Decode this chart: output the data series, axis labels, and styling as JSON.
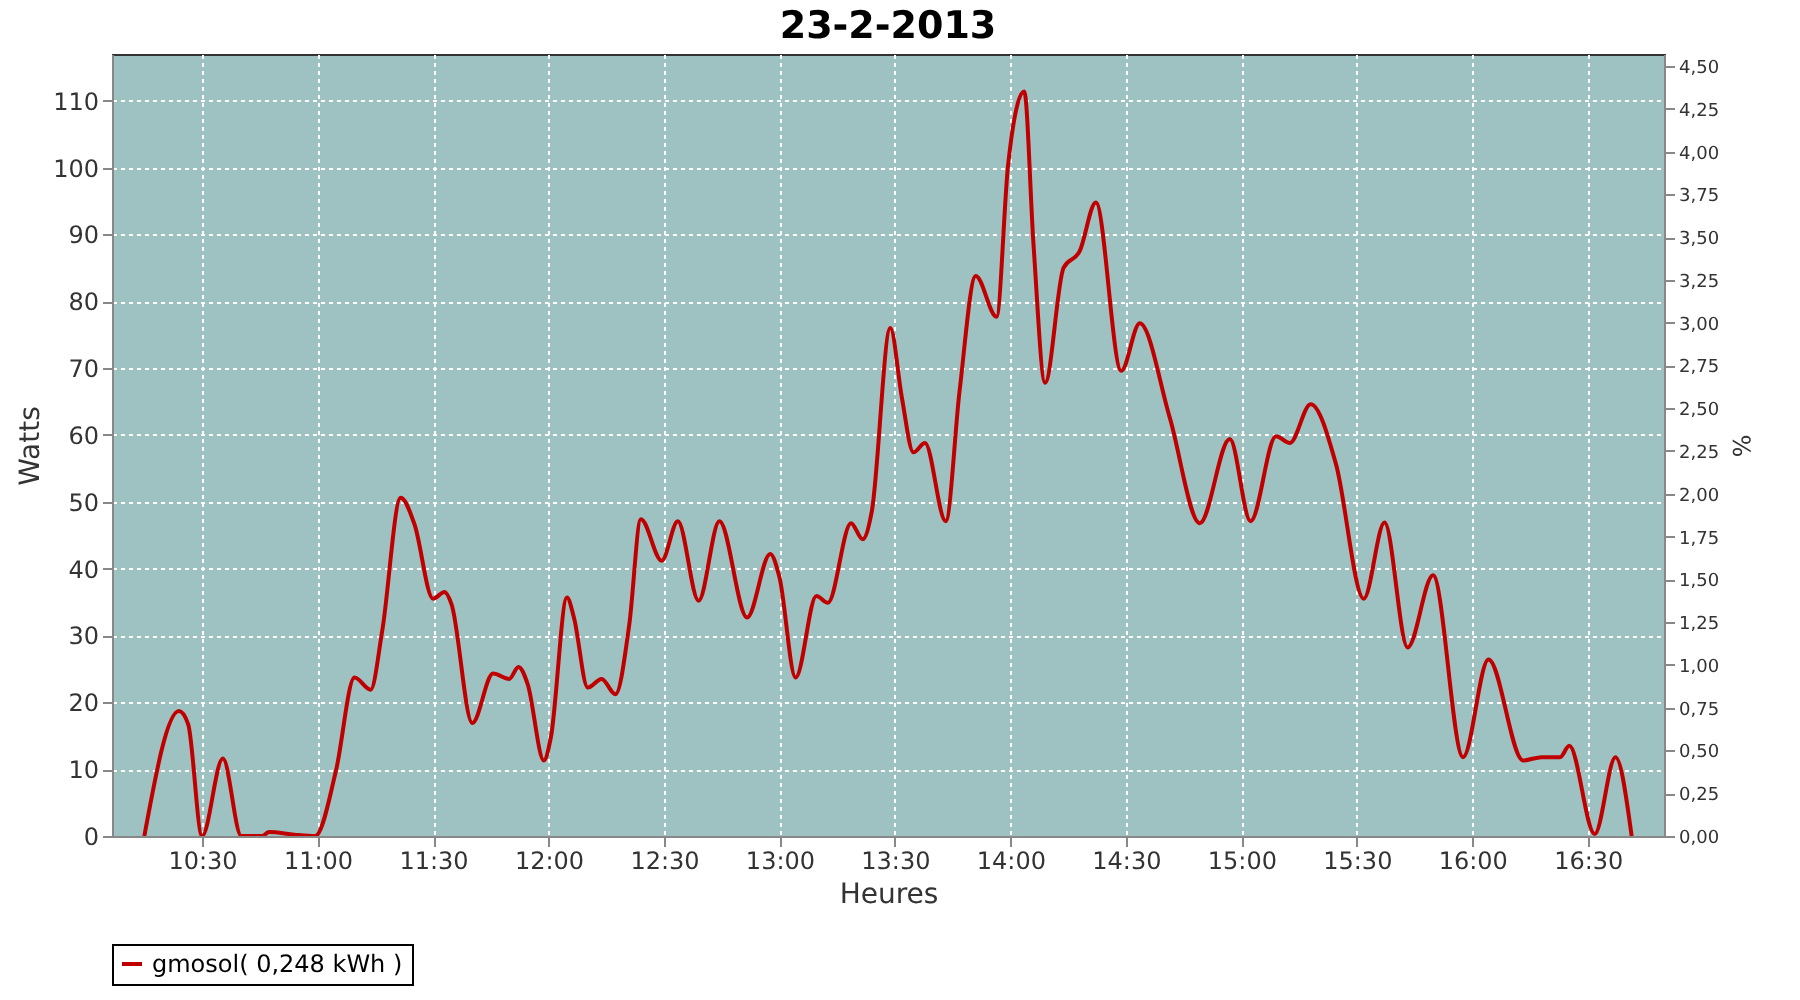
{
  "chart_data": {
    "type": "line",
    "title": "23-2-2013",
    "xlabel": "Heures",
    "ylabel": "Watts",
    "y2label": "%",
    "x": [
      10.25,
      10.4,
      10.44,
      10.5,
      10.59,
      10.67,
      10.76,
      10.79,
      10.9,
      10.99,
      11.08,
      11.16,
      11.23,
      11.28,
      11.36,
      11.42,
      11.5,
      11.55,
      11.58,
      11.67,
      11.76,
      11.83,
      11.87,
      11.91,
      11.98,
      12.01,
      12.08,
      12.11,
      12.17,
      12.23,
      12.29,
      12.35,
      12.4,
      12.49,
      12.56,
      12.65,
      12.74,
      12.86,
      12.96,
      13.0,
      13.07,
      13.16,
      13.21,
      13.31,
      13.36,
      13.4,
      13.48,
      13.53,
      13.58,
      13.63,
      13.72,
      13.78,
      13.85,
      13.94,
      13.99,
      14.06,
      14.1,
      14.15,
      14.23,
      14.3,
      14.37,
      14.48,
      14.56,
      14.69,
      14.82,
      14.95,
      15.04,
      15.15,
      15.21,
      15.3,
      15.41,
      15.53,
      15.62,
      15.72,
      15.83,
      15.96,
      16.07,
      16.22,
      16.3,
      16.38,
      16.42,
      16.53,
      16.62,
      16.69
    ],
    "series": [
      {
        "name": "gmosol( 0,248 kWh )",
        "color": "#c00000",
        "values": [
          0,
          18.7,
          16.7,
          0,
          11.6,
          0,
          0,
          0.6,
          0.2,
          0,
          9.8,
          23.7,
          21.9,
          30.7,
          50.6,
          46.6,
          35.5,
          36.5,
          34.7,
          16.9,
          24.3,
          23.5,
          25.3,
          22.7,
          11.3,
          14.7,
          35.7,
          32.7,
          22.2,
          23.5,
          21.2,
          31.7,
          47.4,
          41.2,
          47.1,
          35.2,
          47.1,
          32.7,
          42.2,
          38.7,
          23.7,
          35.9,
          34.9,
          46.8,
          44.4,
          48.6,
          76.0,
          65.6,
          57.4,
          58.8,
          47.1,
          66.6,
          83.8,
          77.7,
          100.4,
          111.4,
          88.5,
          67.8,
          85.0,
          87.5,
          94.8,
          69.6,
          76.7,
          62.6,
          46.8,
          59.4,
          47.1,
          59.8,
          58.8,
          64.6,
          55.6,
          35.5,
          46.9,
          28.2,
          39.0,
          11.8,
          26.4,
          11.3,
          11.8,
          11.8,
          13.5,
          0.3,
          11.8,
          0
        ]
      }
    ],
    "xlim": [
      10.11,
      16.83
    ],
    "xticks": [
      {
        "value": 10.5,
        "label": "10:30"
      },
      {
        "value": 11,
        "label": "11:00"
      },
      {
        "value": 11.5,
        "label": "11:30"
      },
      {
        "value": 12,
        "label": "12:00"
      },
      {
        "value": 12.5,
        "label": "12:30"
      },
      {
        "value": 13,
        "label": "13:00"
      },
      {
        "value": 13.5,
        "label": "13:30"
      },
      {
        "value": 14,
        "label": "14:00"
      },
      {
        "value": 14.5,
        "label": "14:30"
      },
      {
        "value": 15,
        "label": "15:00"
      },
      {
        "value": 15.5,
        "label": "15:30"
      },
      {
        "value": 16,
        "label": "16:00"
      },
      {
        "value": 16.5,
        "label": "16:30"
      }
    ],
    "ylim": [
      0,
      117
    ],
    "yticks": [
      0,
      10,
      20,
      30,
      40,
      50,
      60,
      70,
      80,
      90,
      100,
      110
    ],
    "y2lim": [
      0,
      4.57
    ],
    "y2ticks": [
      {
        "value": 0,
        "label": "0,00"
      },
      {
        "value": 0.25,
        "label": "0,25"
      },
      {
        "value": 0.5,
        "label": "0,50"
      },
      {
        "value": 0.75,
        "label": "0,75"
      },
      {
        "value": 1,
        "label": "1,00"
      },
      {
        "value": 1.25,
        "label": "1,25"
      },
      {
        "value": 1.5,
        "label": "1,50"
      },
      {
        "value": 1.75,
        "label": "1,75"
      },
      {
        "value": 2,
        "label": "2,00"
      },
      {
        "value": 2.25,
        "label": "2,25"
      },
      {
        "value": 2.5,
        "label": "2,50"
      },
      {
        "value": 2.75,
        "label": "2,75"
      },
      {
        "value": 3,
        "label": "3,00"
      },
      {
        "value": 3.25,
        "label": "3,25"
      },
      {
        "value": 3.5,
        "label": "3,50"
      },
      {
        "value": 3.75,
        "label": "3,75"
      },
      {
        "value": 4,
        "label": "4,00"
      },
      {
        "value": 4.25,
        "label": "4,25"
      },
      {
        "value": 4.5,
        "label": "4,50"
      }
    ],
    "grid": true,
    "legend": "bottom",
    "line_style": "solid"
  }
}
